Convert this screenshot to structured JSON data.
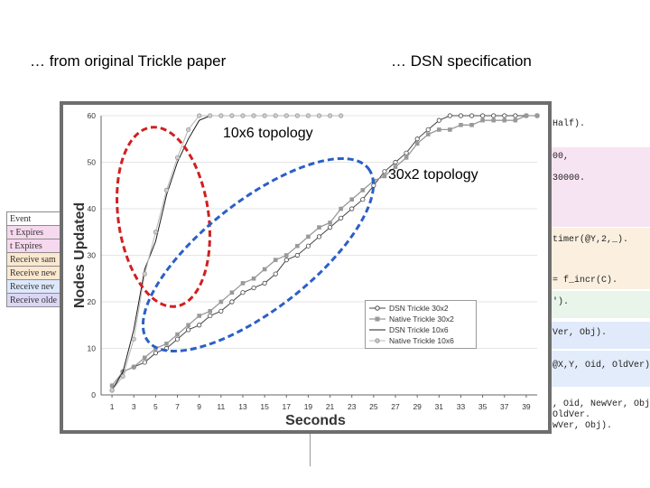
{
  "captions": {
    "left": "… from original Trickle paper",
    "right": "… DSN specification"
  },
  "annotations": {
    "topology_10x6": "10x6 topology",
    "topology_30x2": "30x2 topology"
  },
  "background_slide": {
    "event_table": [
      "Event",
      "τ Expires",
      "t Expires",
      "Receive sam",
      "Receive new",
      "Receive nev",
      "Receive olde"
    ],
    "code_fragments": [
      "Half).",
      "00,",
      "30000.",
      "timer(@Y,2,_).",
      "= f_incr(C).",
      "').",
      "Ver, Obj).",
      "@X,Y, Oid, OldVer).",
      ", Oid, NewVer, Obj).",
      "OldVer.",
      "wVer, Obj)."
    ]
  },
  "colors": {
    "red_ellipse": "#d11f1f",
    "blue_ellipse": "#2a5fc8",
    "dsn_series": "#444444",
    "native_series": "#999999"
  },
  "chart_data": {
    "type": "line",
    "ylabel": "Nodes Updated",
    "xlabel": "Seconds",
    "xlim": [
      0,
      40
    ],
    "ylim": [
      0,
      60
    ],
    "x_ticks": [
      "1",
      "3",
      "5",
      "7",
      "9",
      "11",
      "13",
      "15",
      "17",
      "19",
      "21",
      "23",
      "25",
      "27",
      "29",
      "31",
      "33",
      "35",
      "37",
      "39"
    ],
    "y_ticks": [
      "0",
      "10",
      "20",
      "30",
      "40",
      "50",
      "60"
    ],
    "series": [
      {
        "name": "DSN Trickle 30x2",
        "marker": "circle-open",
        "x": [
          1,
          2,
          3,
          4,
          5,
          6,
          7,
          8,
          9,
          10,
          11,
          12,
          13,
          14,
          15,
          16,
          17,
          18,
          19,
          20,
          21,
          22,
          23,
          24,
          25,
          26,
          27,
          28,
          29,
          30,
          31,
          32,
          33,
          34,
          35,
          36,
          37,
          38,
          39,
          40
        ],
        "y": [
          1,
          5,
          6,
          7,
          9,
          10,
          12,
          14,
          15,
          17,
          18,
          20,
          22,
          23,
          24,
          26,
          29,
          30,
          32,
          34,
          36,
          38,
          40,
          42,
          45,
          48,
          50,
          52,
          55,
          57,
          59,
          60,
          60,
          60,
          60,
          60,
          60,
          60,
          60,
          60
        ]
      },
      {
        "name": "Native Trickle 30x2",
        "marker": "square",
        "x": [
          1,
          2,
          3,
          4,
          5,
          6,
          7,
          8,
          9,
          10,
          11,
          12,
          13,
          14,
          15,
          16,
          17,
          18,
          19,
          20,
          21,
          22,
          23,
          24,
          25,
          26,
          27,
          28,
          29,
          30,
          31,
          32,
          33,
          34,
          35,
          36,
          37,
          38,
          39,
          40
        ],
        "y": [
          2,
          5,
          6,
          8,
          10,
          11,
          13,
          15,
          17,
          18,
          20,
          22,
          24,
          25,
          27,
          29,
          30,
          32,
          34,
          36,
          37,
          40,
          42,
          44,
          46,
          47,
          49,
          51,
          54,
          56,
          57,
          57,
          58,
          58,
          59,
          59,
          59,
          59,
          60,
          60
        ]
      },
      {
        "name": "DSN Trickle 10x6",
        "marker": "line",
        "x": [
          1,
          2,
          3,
          4,
          5,
          6,
          7,
          8,
          9,
          10,
          11,
          12,
          13,
          14,
          15,
          16,
          17,
          18,
          19,
          20,
          21,
          22
        ],
        "y": [
          1,
          5,
          14,
          27,
          33,
          43,
          50,
          55,
          59,
          60,
          60,
          60,
          60,
          60,
          60,
          60,
          60,
          60,
          60,
          60,
          60,
          60
        ]
      },
      {
        "name": "Native Trickle 10x6",
        "marker": "circle-open",
        "x": [
          1,
          2,
          3,
          4,
          5,
          6,
          7,
          8,
          9,
          10,
          11,
          12,
          13,
          14,
          15,
          16,
          17,
          18,
          19,
          20,
          21,
          22
        ],
        "y": [
          1,
          4,
          12,
          26,
          35,
          44,
          51,
          57,
          60,
          60,
          60,
          60,
          60,
          60,
          60,
          60,
          60,
          60,
          60,
          60,
          60,
          60
        ]
      }
    ]
  }
}
